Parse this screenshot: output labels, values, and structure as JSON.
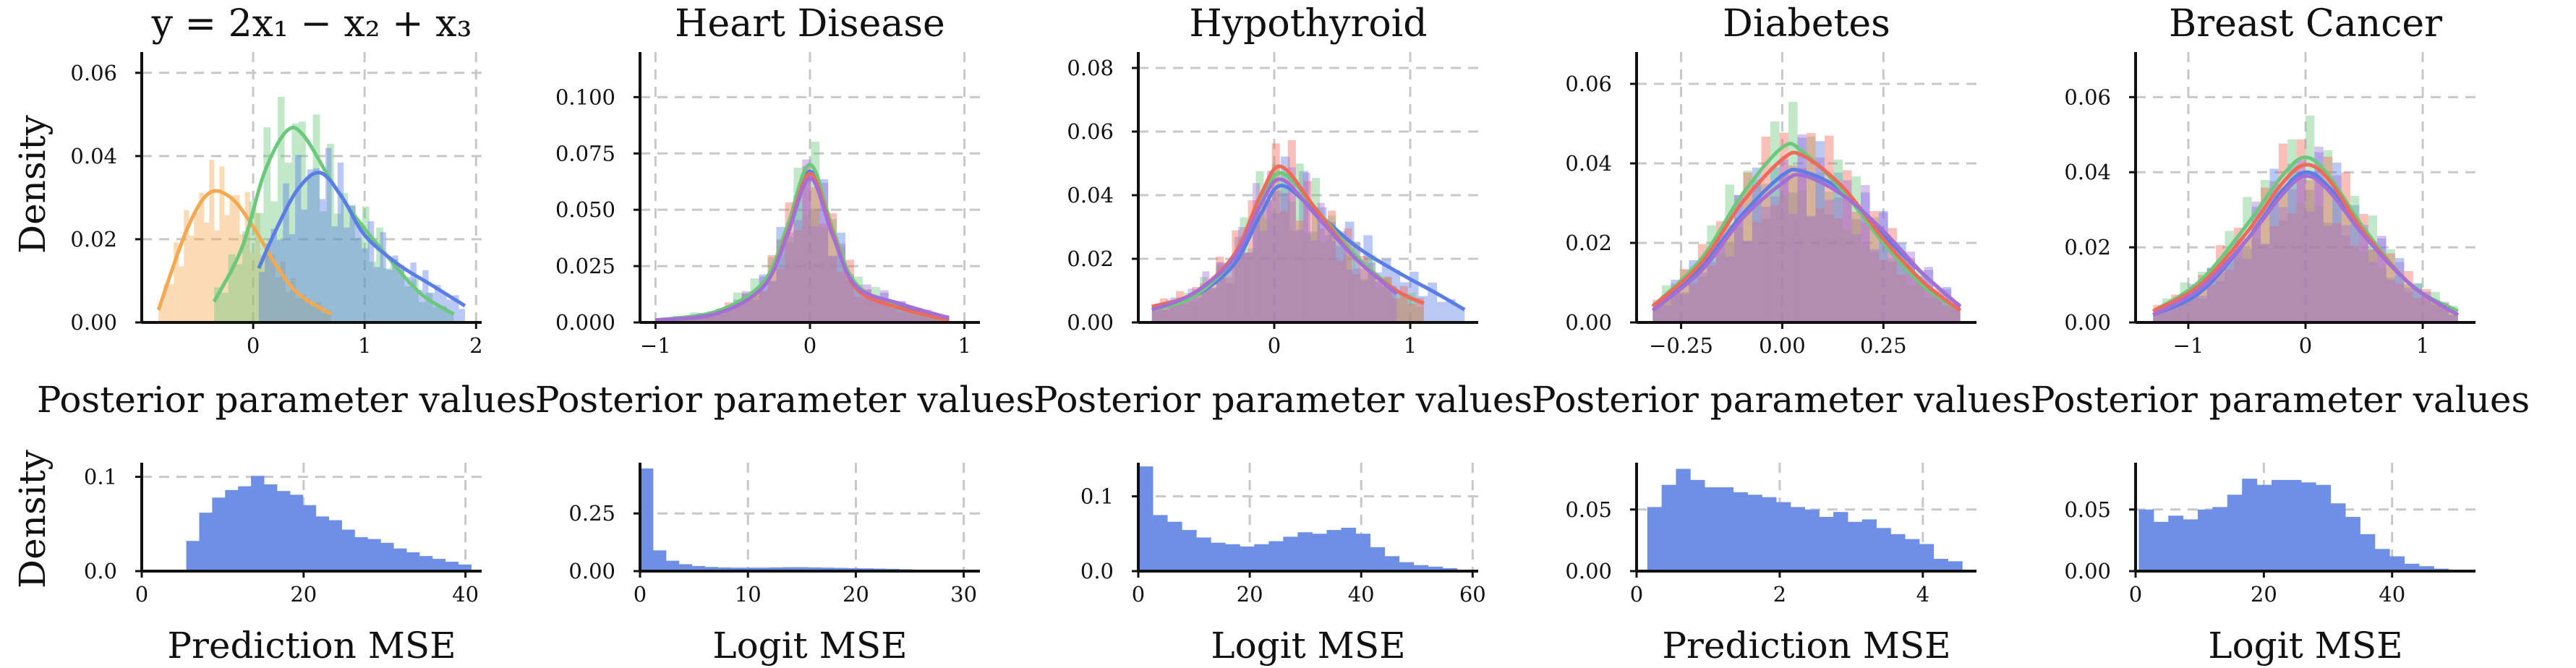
{
  "figure": {
    "ylabel_top": "Density",
    "ylabel_bottom": "Density"
  },
  "colors": {
    "series": [
      "#f4a950",
      "#6cc97c",
      "#5b7de6",
      "#f06a5a",
      "#a36fd6",
      "#5fd6e3",
      "#f2d35a",
      "#3fae8c"
    ],
    "bottom_bars": "#6f8fe6"
  },
  "chart_data": [
    {
      "type": "histogram+kde",
      "title": "y = 2x₁ − x₂ + x₃",
      "xlabel": "Posterior parameter values",
      "ylabel": "Density",
      "xlim": [
        -1.0,
        2.05
      ],
      "ylim": [
        0,
        0.065
      ],
      "xticks": [
        0,
        1,
        2
      ],
      "xtick_labels": [
        "0",
        "1",
        "2"
      ],
      "yticks": [
        0,
        0.02,
        0.04,
        0.06
      ],
      "ytick_labels": [
        "0.00",
        "0.02",
        "0.04",
        "0.06"
      ],
      "grid": true,
      "series": [
        {
          "color_index": 0,
          "x": [
            -0.85,
            -0.6,
            -0.4,
            -0.2,
            0.0,
            0.2,
            0.4,
            0.7
          ],
          "density": [
            0.003,
            0.022,
            0.031,
            0.03,
            0.023,
            0.014,
            0.007,
            0.002
          ]
        },
        {
          "color_index": 1,
          "x": [
            -0.35,
            -0.1,
            0.1,
            0.3,
            0.45,
            0.7,
            0.9,
            1.2,
            1.5,
            1.8
          ],
          "density": [
            0.005,
            0.018,
            0.036,
            0.046,
            0.045,
            0.034,
            0.026,
            0.016,
            0.007,
            0.002
          ]
        },
        {
          "color_index": 2,
          "x": [
            0.05,
            0.2,
            0.4,
            0.6,
            0.8,
            1.0,
            1.3,
            1.6,
            1.9
          ],
          "density": [
            0.013,
            0.022,
            0.032,
            0.036,
            0.03,
            0.021,
            0.014,
            0.009,
            0.004
          ]
        }
      ]
    },
    {
      "type": "histogram+kde",
      "title": "Heart Disease",
      "xlabel": "Posterior parameter values",
      "ylabel": "",
      "xlim": [
        -1.1,
        1.1
      ],
      "ylim": [
        0,
        0.12
      ],
      "xticks": [
        -1,
        0,
        1
      ],
      "xtick_labels": [
        "−1",
        "0",
        "1"
      ],
      "yticks": [
        0,
        0.025,
        0.05,
        0.075,
        0.1
      ],
      "ytick_labels": [
        "0.000",
        "0.025",
        "0.050",
        "0.075",
        "0.100"
      ],
      "grid": true,
      "series": [
        {
          "color_index": 2,
          "x": [
            -1.0,
            -0.6,
            -0.3,
            -0.15,
            0.0,
            0.15,
            0.3,
            0.6,
            0.9
          ],
          "density": [
            0.001,
            0.004,
            0.017,
            0.04,
            0.067,
            0.04,
            0.016,
            0.007,
            0.001
          ]
        },
        {
          "color_index": 1,
          "x": [
            -1.0,
            -0.6,
            -0.3,
            -0.15,
            0.0,
            0.15,
            0.3,
            0.6,
            0.9
          ],
          "density": [
            0.001,
            0.005,
            0.018,
            0.042,
            0.07,
            0.041,
            0.017,
            0.006,
            0.001
          ]
        },
        {
          "color_index": 3,
          "x": [
            -1.0,
            -0.6,
            -0.3,
            -0.15,
            0.0,
            0.15,
            0.3,
            0.6,
            0.9
          ],
          "density": [
            0.001,
            0.004,
            0.016,
            0.039,
            0.066,
            0.039,
            0.015,
            0.006,
            0.001
          ]
        },
        {
          "color_index": 4,
          "x": [
            -1.0,
            -0.6,
            -0.3,
            -0.15,
            0.0,
            0.15,
            0.3,
            0.6,
            0.9
          ],
          "density": [
            0.001,
            0.004,
            0.016,
            0.038,
            0.064,
            0.038,
            0.016,
            0.008,
            0.002
          ]
        }
      ]
    },
    {
      "type": "histogram+kde",
      "title": "Hypothyroid",
      "xlabel": "Posterior parameter values",
      "ylabel": "",
      "xlim": [
        -1.0,
        1.5
      ],
      "ylim": [
        0,
        0.085
      ],
      "xticks": [
        0,
        1
      ],
      "xtick_labels": [
        "0",
        "1"
      ],
      "yticks": [
        0,
        0.02,
        0.04,
        0.06,
        0.08
      ],
      "ytick_labels": [
        "0.00",
        "0.02",
        "0.04",
        "0.06",
        "0.08"
      ],
      "grid": true,
      "series": [
        {
          "color_index": 2,
          "x": [
            -0.9,
            -0.6,
            -0.3,
            -0.1,
            0.05,
            0.3,
            0.6,
            0.9,
            1.2,
            1.4
          ],
          "density": [
            0.004,
            0.008,
            0.018,
            0.034,
            0.043,
            0.035,
            0.024,
            0.016,
            0.009,
            0.004
          ]
        },
        {
          "color_index": 1,
          "x": [
            -0.9,
            -0.6,
            -0.3,
            -0.1,
            0.05,
            0.3,
            0.6,
            0.9,
            1.1
          ],
          "density": [
            0.004,
            0.008,
            0.02,
            0.038,
            0.047,
            0.036,
            0.021,
            0.01,
            0.006
          ]
        },
        {
          "color_index": 3,
          "x": [
            -0.9,
            -0.6,
            -0.3,
            -0.1,
            0.05,
            0.3,
            0.6,
            0.9,
            1.1
          ],
          "density": [
            0.005,
            0.009,
            0.021,
            0.04,
            0.049,
            0.036,
            0.02,
            0.01,
            0.006
          ]
        },
        {
          "color_index": 4,
          "x": [
            -0.9,
            -0.6,
            -0.3,
            -0.1,
            0.05,
            0.3,
            0.6,
            0.9
          ],
          "density": [
            0.004,
            0.009,
            0.02,
            0.037,
            0.045,
            0.034,
            0.02,
            0.009
          ]
        }
      ]
    },
    {
      "type": "histogram+kde",
      "title": "Diabetes",
      "xlabel": "Posterior parameter values",
      "ylabel": "",
      "xlim": [
        -0.36,
        0.48
      ],
      "ylim": [
        0,
        0.068
      ],
      "xticks": [
        -0.25,
        0.0,
        0.25
      ],
      "xtick_labels": [
        "−0.25",
        "0.00",
        "0.25"
      ],
      "yticks": [
        0,
        0.02,
        0.04,
        0.06
      ],
      "ytick_labels": [
        "0.00",
        "0.02",
        "0.04",
        "0.06"
      ],
      "grid": true,
      "series": [
        {
          "color_index": 2,
          "x": [
            -0.32,
            -0.2,
            -0.1,
            0.0,
            0.05,
            0.15,
            0.25,
            0.35,
            0.44
          ],
          "density": [
            0.004,
            0.014,
            0.027,
            0.037,
            0.038,
            0.033,
            0.022,
            0.012,
            0.004
          ]
        },
        {
          "color_index": 1,
          "x": [
            -0.32,
            -0.2,
            -0.1,
            0.0,
            0.05,
            0.15,
            0.25,
            0.35,
            0.44
          ],
          "density": [
            0.004,
            0.016,
            0.032,
            0.044,
            0.043,
            0.033,
            0.02,
            0.009,
            0.003
          ]
        },
        {
          "color_index": 3,
          "x": [
            -0.32,
            -0.2,
            -0.1,
            0.0,
            0.05,
            0.15,
            0.25,
            0.35,
            0.44
          ],
          "density": [
            0.004,
            0.015,
            0.03,
            0.041,
            0.042,
            0.034,
            0.021,
            0.01,
            0.003
          ]
        },
        {
          "color_index": 4,
          "x": [
            -0.32,
            -0.2,
            -0.1,
            0.0,
            0.05,
            0.15,
            0.25,
            0.35,
            0.44
          ],
          "density": [
            0.003,
            0.013,
            0.026,
            0.035,
            0.037,
            0.032,
            0.023,
            0.012,
            0.004
          ]
        }
      ]
    },
    {
      "type": "histogram+kde",
      "title": "Breast Cancer",
      "xlabel": "Posterior parameter values",
      "ylabel": "",
      "xlim": [
        -1.45,
        1.45
      ],
      "ylim": [
        0,
        0.072
      ],
      "xticks": [
        -1,
        0,
        1
      ],
      "xtick_labels": [
        "−1",
        "0",
        "1"
      ],
      "yticks": [
        0,
        0.02,
        0.04,
        0.06
      ],
      "ytick_labels": [
        "0.00",
        "0.02",
        "0.04",
        "0.06"
      ],
      "grid": true,
      "series": [
        {
          "color_index": 2,
          "x": [
            -1.3,
            -0.9,
            -0.5,
            -0.2,
            0.0,
            0.2,
            0.5,
            0.9,
            1.3
          ],
          "density": [
            0.002,
            0.008,
            0.022,
            0.035,
            0.04,
            0.036,
            0.024,
            0.01,
            0.002
          ]
        },
        {
          "color_index": 1,
          "x": [
            -1.3,
            -0.9,
            -0.5,
            -0.2,
            0.0,
            0.2,
            0.5,
            0.9,
            1.3
          ],
          "density": [
            0.003,
            0.011,
            0.026,
            0.039,
            0.044,
            0.039,
            0.025,
            0.01,
            0.003
          ]
        },
        {
          "color_index": 3,
          "x": [
            -1.3,
            -0.9,
            -0.5,
            -0.2,
            0.0,
            0.2,
            0.5,
            0.9,
            1.3
          ],
          "density": [
            0.003,
            0.01,
            0.024,
            0.037,
            0.042,
            0.038,
            0.024,
            0.01,
            0.002
          ]
        },
        {
          "color_index": 4,
          "x": [
            -1.3,
            -0.9,
            -0.5,
            -0.2,
            0.0,
            0.2,
            0.5,
            0.9,
            1.3
          ],
          "density": [
            0.002,
            0.009,
            0.022,
            0.034,
            0.039,
            0.035,
            0.023,
            0.01,
            0.002
          ]
        }
      ]
    },
    {
      "type": "histogram",
      "title": "",
      "xlabel": "Prediction MSE",
      "ylabel": "Density",
      "xlim": [
        0,
        42
      ],
      "ylim": [
        0,
        0.115
      ],
      "xticks": [
        0,
        20,
        40
      ],
      "xtick_labels": [
        "0",
        "20",
        "40"
      ],
      "yticks": [
        0,
        0.1
      ],
      "ytick_labels": [
        "0.0",
        "0.1"
      ],
      "grid": true,
      "bin_start": 5.5,
      "bin_width": 1.6,
      "values": [
        0.032,
        0.062,
        0.078,
        0.086,
        0.09,
        0.101,
        0.092,
        0.085,
        0.081,
        0.07,
        0.058,
        0.054,
        0.044,
        0.036,
        0.034,
        0.03,
        0.024,
        0.02,
        0.016,
        0.013,
        0.01,
        0.007
      ]
    },
    {
      "type": "histogram",
      "title": "",
      "xlabel": "Logit MSE",
      "ylabel": "",
      "xlim": [
        0,
        31.5
      ],
      "ylim": [
        0,
        0.47
      ],
      "xticks": [
        0,
        10,
        20,
        30
      ],
      "xtick_labels": [
        "0",
        "10",
        "20",
        "30"
      ],
      "yticks": [
        0,
        0.25
      ],
      "ytick_labels": [
        "0.00",
        "0.25"
      ],
      "grid": true,
      "bin_start": 0,
      "bin_width": 1.2,
      "values": [
        0.445,
        0.09,
        0.045,
        0.03,
        0.022,
        0.018,
        0.016,
        0.015,
        0.015,
        0.015,
        0.016,
        0.017,
        0.017,
        0.016,
        0.015,
        0.014,
        0.013,
        0.012,
        0.011,
        0.01,
        0.008,
        0.006,
        0.005
      ]
    },
    {
      "type": "histogram",
      "title": "",
      "xlabel": "Logit MSE",
      "ylabel": "",
      "xlim": [
        0,
        61
      ],
      "ylim": [
        0,
        0.145
      ],
      "xticks": [
        0,
        20,
        40,
        60
      ],
      "xtick_labels": [
        "0",
        "20",
        "40",
        "60"
      ],
      "yticks": [
        0,
        0.1
      ],
      "ytick_labels": [
        "0.0",
        "0.1"
      ],
      "grid": true,
      "bin_start": 0,
      "bin_width": 2.6,
      "values": [
        0.14,
        0.075,
        0.066,
        0.055,
        0.045,
        0.038,
        0.036,
        0.033,
        0.036,
        0.04,
        0.046,
        0.052,
        0.05,
        0.055,
        0.058,
        0.05,
        0.032,
        0.02,
        0.012,
        0.008,
        0.006,
        0.004
      ]
    },
    {
      "type": "histogram",
      "title": "",
      "xlabel": "Prediction MSE",
      "ylabel": "",
      "xlim": [
        0,
        4.75
      ],
      "ylim": [
        0,
        0.088
      ],
      "xticks": [
        0,
        2,
        4
      ],
      "xtick_labels": [
        "0",
        "2",
        "4"
      ],
      "yticks": [
        0,
        0.05
      ],
      "ytick_labels": [
        "0.00",
        "0.05"
      ],
      "grid": true,
      "bin_start": 0.15,
      "bin_width": 0.2,
      "values": [
        0.052,
        0.07,
        0.083,
        0.074,
        0.068,
        0.068,
        0.064,
        0.062,
        0.06,
        0.056,
        0.052,
        0.05,
        0.044,
        0.048,
        0.04,
        0.042,
        0.035,
        0.03,
        0.026,
        0.022,
        0.01,
        0.008
      ]
    },
    {
      "type": "histogram",
      "title": "",
      "xlabel": "Logit MSE",
      "ylabel": "",
      "xlim": [
        0,
        53
      ],
      "ylim": [
        0,
        0.088
      ],
      "xticks": [
        0,
        20,
        40
      ],
      "xtick_labels": [
        "0",
        "20",
        "40"
      ],
      "yticks": [
        0,
        0.05
      ],
      "ytick_labels": [
        "0.00",
        "0.05"
      ],
      "grid": true,
      "bin_start": 0.5,
      "bin_width": 2.3,
      "values": [
        0.05,
        0.04,
        0.045,
        0.042,
        0.05,
        0.052,
        0.062,
        0.075,
        0.07,
        0.074,
        0.074,
        0.072,
        0.07,
        0.055,
        0.044,
        0.03,
        0.018,
        0.012,
        0.006,
        0.004,
        0.002
      ]
    }
  ]
}
